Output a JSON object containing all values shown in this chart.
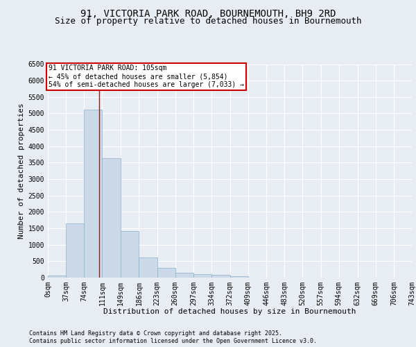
{
  "title1": "91, VICTORIA PARK ROAD, BOURNEMOUTH, BH9 2RD",
  "title2": "Size of property relative to detached houses in Bournemouth",
  "xlabel": "Distribution of detached houses by size in Bournemouth",
  "ylabel": "Number of detached properties",
  "bins": [
    0,
    37,
    74,
    111,
    149,
    186,
    223,
    260,
    297,
    334,
    372,
    409,
    446,
    483,
    520,
    557,
    594,
    632,
    669,
    706,
    743
  ],
  "counts": [
    55,
    1650,
    5120,
    3640,
    1420,
    610,
    300,
    155,
    110,
    75,
    45,
    0,
    0,
    0,
    0,
    0,
    0,
    0,
    0,
    0
  ],
  "bar_color": "#ccd9e8",
  "bar_edge_color": "#8aafc8",
  "bg_color": "#e8edf4",
  "grid_color": "#ffffff",
  "vline_x": 105,
  "vline_color": "#cc0000",
  "annotation_text": "91 VICTORIA PARK ROAD: 105sqm\n← 45% of detached houses are smaller (5,854)\n54% of semi-detached houses are larger (7,033) →",
  "annotation_box_color": "#ffffff",
  "annotation_border_color": "#cc0000",
  "footer1": "Contains HM Land Registry data © Crown copyright and database right 2025.",
  "footer2": "Contains public sector information licensed under the Open Government Licence v3.0.",
  "ylim": [
    0,
    6500
  ],
  "yticks": [
    0,
    500,
    1000,
    1500,
    2000,
    2500,
    3000,
    3500,
    4000,
    4500,
    5000,
    5500,
    6000,
    6500
  ],
  "title1_fontsize": 10,
  "title2_fontsize": 9,
  "axis_fontsize": 8,
  "tick_fontsize": 7,
  "annotation_fontsize": 7,
  "footer_fontsize": 6
}
